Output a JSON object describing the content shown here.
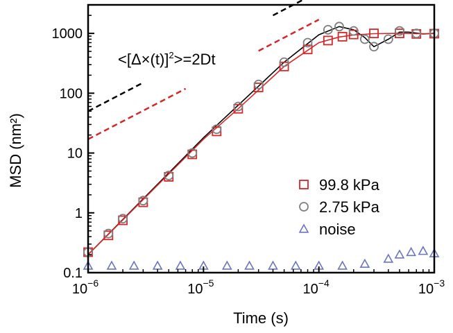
{
  "chart_data": {
    "type": "scatter",
    "xscale": "log",
    "yscale": "log",
    "xlim": [
      1e-06,
      0.001
    ],
    "ylim": [
      0.1,
      3000
    ],
    "xlabel": "Time (s)",
    "ylabel": "MSD (nm²)",
    "x_ticks": [
      {
        "value": 1e-06,
        "base": "10",
        "exp": "−6"
      },
      {
        "value": 1e-05,
        "base": "10",
        "exp": "−5"
      },
      {
        "value": 0.0001,
        "base": "10",
        "exp": "−4"
      },
      {
        "value": 0.001,
        "base": "10",
        "exp": "−3"
      }
    ],
    "y_ticks": [
      {
        "value": 0.1,
        "label": "0.1"
      },
      {
        "value": 1,
        "label": "1"
      },
      {
        "value": 10,
        "label": "10"
      },
      {
        "value": 100,
        "label": "100"
      },
      {
        "value": 1000,
        "label": "1000"
      }
    ],
    "annotation": {
      "text": "<[Δ×(t)]",
      "sup": "2",
      "rest": ">=2Dt"
    },
    "legend": [
      {
        "label": "99.8 kPa",
        "marker": "square",
        "color": "#d62728"
      },
      {
        "label": "2.75 kPa",
        "marker": "circle",
        "color": "#7f7f7f"
      },
      {
        "label": "noise",
        "marker": "triangle",
        "color": "#6b74c4"
      }
    ],
    "series": [
      {
        "name": "99.8 kPa",
        "marker": "square",
        "color": "#d62728",
        "x": [
          1e-06,
          1.5e-06,
          2e-06,
          3e-06,
          5e-06,
          8e-06,
          1.3e-05,
          2e-05,
          3e-05,
          5e-05,
          8e-05,
          0.00012,
          0.00016,
          0.0002,
          0.0003,
          0.0005,
          0.0007,
          0.001
        ],
        "y": [
          0.22,
          0.42,
          0.75,
          1.5,
          4,
          9.5,
          23,
          55,
          125,
          280,
          540,
          760,
          880,
          960,
          1000,
          1000,
          980,
          990
        ]
      },
      {
        "name": "2.75 kPa",
        "marker": "circle",
        "color": "#7f7f7f",
        "x": [
          1e-06,
          1.5e-06,
          2e-06,
          3e-06,
          5e-06,
          8e-06,
          1.3e-05,
          2e-05,
          3e-05,
          5e-05,
          8e-05,
          0.00012,
          0.00015,
          0.0002,
          0.00025,
          0.0003,
          0.0004,
          0.0005,
          0.0007,
          0.001
        ],
        "y": [
          0.22,
          0.45,
          0.8,
          1.6,
          4.2,
          10,
          25,
          60,
          140,
          330,
          700,
          1150,
          1300,
          1100,
          800,
          600,
          800,
          1100,
          1000,
          1000
        ]
      },
      {
        "name": "noise",
        "marker": "triangle",
        "color": "#6b74c4",
        "x": [
          1e-06,
          1.6e-06,
          2.5e-06,
          4e-06,
          6.3e-06,
          1e-05,
          1.6e-05,
          2.5e-05,
          4e-05,
          6.3e-05,
          0.0001,
          0.00016,
          0.00025,
          0.0004,
          0.0005,
          0.00063,
          0.0008,
          0.001
        ],
        "y": [
          0.13,
          0.13,
          0.13,
          0.13,
          0.13,
          0.13,
          0.13,
          0.13,
          0.13,
          0.13,
          0.13,
          0.13,
          0.14,
          0.17,
          0.2,
          0.22,
          0.23,
          0.21
        ]
      }
    ],
    "fit_lines": [
      {
        "name": "fit-2.75kPa",
        "color": "#000000",
        "x": [
          1e-06,
          1e-05,
          5e-05,
          0.0001,
          0.00015,
          0.0002,
          0.00025,
          0.0003,
          0.0004,
          0.0005,
          0.0006,
          0.0008,
          0.001
        ],
        "y": [
          0.2,
          18,
          330,
          950,
          1300,
          1150,
          850,
          600,
          800,
          1050,
          1050,
          980,
          1000
        ]
      },
      {
        "name": "fit-99.8kPa",
        "color": "#d62728",
        "x": [
          1e-06,
          1e-05,
          2e-05,
          5e-05,
          0.0001,
          0.00015,
          0.0002,
          0.0003,
          0.0005,
          0.0007,
          0.001
        ],
        "y": [
          0.2,
          17,
          55,
          280,
          700,
          870,
          940,
          990,
          1000,
          990,
          990
        ]
      }
    ],
    "guide_lines": [
      {
        "name": "black-guide",
        "color": "#000000",
        "x": [
          1e-06,
          3e-06,
          4e-05,
          0.0001
        ],
        "y": [
          50,
          150,
          2000,
          5000
        ],
        "segments": [
          [
            0,
            1
          ],
          [
            2,
            3
          ]
        ]
      },
      {
        "name": "red-guide",
        "color": "#d62728",
        "x": [
          1e-06,
          7e-06,
          3e-05,
          0.0001
        ],
        "y": [
          17,
          119,
          510,
          1700
        ],
        "segments": [
          [
            0,
            1
          ],
          [
            2,
            3
          ]
        ]
      }
    ]
  }
}
